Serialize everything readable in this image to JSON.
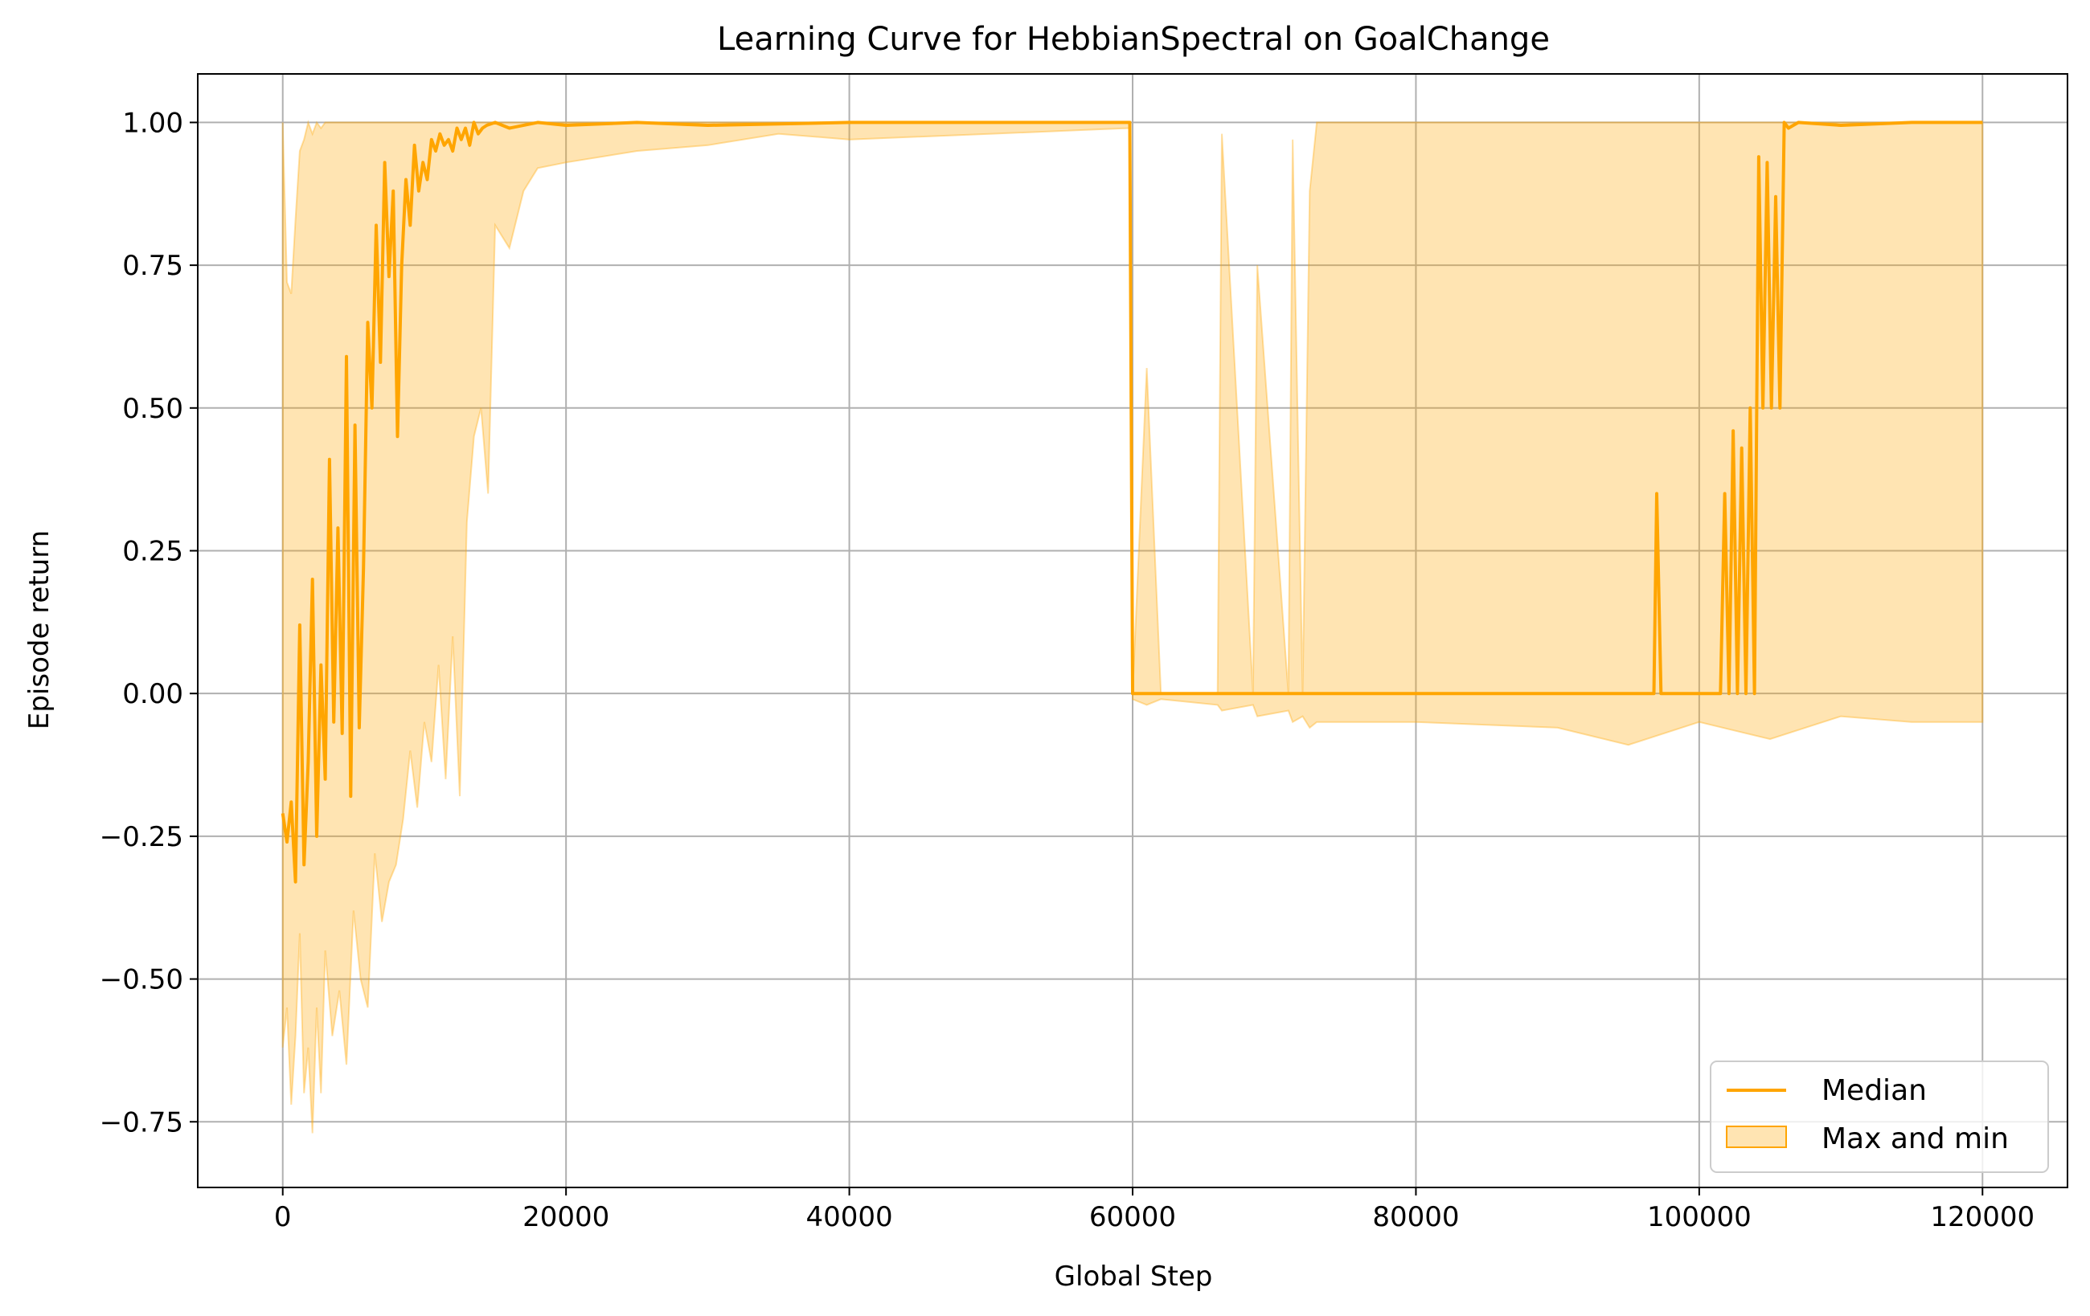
{
  "chart_data": {
    "type": "line",
    "title": "Learning Curve for HebbianSpectral on GoalChange",
    "xlabel": "Global Step",
    "ylabel": "Episode return",
    "xlim": [
      -6000,
      126000
    ],
    "ylim": [
      -0.865,
      1.085
    ],
    "xticks": [
      0,
      20000,
      40000,
      60000,
      80000,
      100000,
      120000
    ],
    "xtick_labels": [
      "0",
      "20000",
      "40000",
      "60000",
      "80000",
      "100000",
      "120000"
    ],
    "yticks": [
      -0.75,
      -0.5,
      -0.25,
      0.0,
      0.25,
      0.5,
      0.75,
      1.0
    ],
    "ytick_labels": [
      "−0.75",
      "−0.50",
      "−0.25",
      "0.00",
      "0.25",
      "0.50",
      "0.75",
      "1.00"
    ],
    "grid": true,
    "legend_position": "bottom-right",
    "colors": {
      "median": "#ffa500",
      "band": "#ffa500"
    },
    "series": [
      {
        "name": "Median",
        "kind": "line",
        "x": [
          0,
          300,
          600,
          900,
          1200,
          1500,
          1800,
          2100,
          2400,
          2700,
          3000,
          3300,
          3600,
          3900,
          4200,
          4500,
          4800,
          5100,
          5400,
          5700,
          6000,
          6300,
          6600,
          6900,
          7200,
          7500,
          7800,
          8100,
          8400,
          8700,
          9000,
          9300,
          9600,
          9900,
          10200,
          10500,
          10800,
          11100,
          11400,
          11700,
          12000,
          12300,
          12600,
          12900,
          13200,
          13500,
          13800,
          14100,
          14400,
          15000,
          16000,
          18000,
          20000,
          25000,
          30000,
          40000,
          50000,
          59800,
          60000,
          60300,
          65000,
          70000,
          75000,
          80000,
          85000,
          90000,
          96800,
          97000,
          97300,
          97600,
          97900,
          101500,
          101800,
          102100,
          102400,
          102700,
          103000,
          103300,
          103600,
          103900,
          104200,
          104500,
          104800,
          105100,
          105400,
          105700,
          106000,
          106300,
          107000,
          110000,
          115000,
          120000
        ],
        "y": [
          -0.21,
          -0.26,
          -0.19,
          -0.33,
          0.12,
          -0.3,
          -0.12,
          0.2,
          -0.25,
          0.05,
          -0.15,
          0.41,
          -0.05,
          0.29,
          -0.07,
          0.59,
          -0.18,
          0.47,
          -0.06,
          0.22,
          0.65,
          0.5,
          0.82,
          0.58,
          0.93,
          0.73,
          0.88,
          0.45,
          0.75,
          0.9,
          0.82,
          0.96,
          0.88,
          0.93,
          0.9,
          0.97,
          0.95,
          0.98,
          0.96,
          0.97,
          0.95,
          0.99,
          0.97,
          0.99,
          0.96,
          1.0,
          0.98,
          0.99,
          0.995,
          1.0,
          0.99,
          1.0,
          0.995,
          1.0,
          0.995,
          1.0,
          1.0,
          1.0,
          0.0,
          0.0,
          0.0,
          0.0,
          0.0,
          0.0,
          0.0,
          0.0,
          0.0,
          0.35,
          0.0,
          0.0,
          0.0,
          0.0,
          0.35,
          0.0,
          0.46,
          0.0,
          0.43,
          0.0,
          0.5,
          0.0,
          0.94,
          0.5,
          0.93,
          0.5,
          0.87,
          0.5,
          1.0,
          0.99,
          1.0,
          0.995,
          1.0,
          1.0
        ]
      },
      {
        "name": "Max and min",
        "kind": "band",
        "x": [
          0,
          300,
          600,
          900,
          1200,
          1500,
          1800,
          2100,
          2400,
          2700,
          3000,
          3500,
          4000,
          4500,
          5000,
          5500,
          6000,
          6500,
          7000,
          7500,
          8000,
          8500,
          9000,
          9500,
          10000,
          10500,
          11000,
          11500,
          12000,
          12500,
          13000,
          13500,
          14000,
          14500,
          15000,
          16000,
          17000,
          18000,
          20000,
          25000,
          30000,
          35000,
          40000,
          50000,
          59800,
          60000,
          61000,
          62000,
          66000,
          66300,
          68500,
          68800,
          71000,
          71300,
          72000,
          72500,
          73000,
          73200,
          80000,
          90000,
          95000,
          100000,
          105000,
          110000,
          115000,
          120000
        ],
        "upper": [
          1.0,
          0.72,
          0.7,
          0.83,
          0.95,
          0.97,
          1.0,
          0.98,
          1.0,
          0.99,
          1.0,
          1.0,
          1.0,
          1.0,
          1.0,
          1.0,
          1.0,
          1.0,
          1.0,
          1.0,
          1.0,
          1.0,
          1.0,
          1.0,
          1.0,
          1.0,
          1.0,
          1.0,
          1.0,
          1.0,
          1.0,
          1.0,
          1.0,
          1.0,
          1.0,
          1.0,
          1.0,
          1.0,
          1.0,
          1.0,
          1.0,
          1.0,
          1.0,
          1.0,
          1.0,
          0.0,
          0.57,
          0.0,
          0.0,
          0.98,
          0.0,
          0.75,
          0.0,
          0.97,
          0.0,
          0.88,
          1.0,
          1.0,
          1.0,
          1.0,
          1.0,
          1.0,
          1.0,
          1.0,
          1.0,
          1.0
        ],
        "lower": [
          -0.62,
          -0.55,
          -0.72,
          -0.6,
          -0.42,
          -0.7,
          -0.62,
          -0.77,
          -0.55,
          -0.7,
          -0.45,
          -0.6,
          -0.52,
          -0.65,
          -0.38,
          -0.5,
          -0.55,
          -0.28,
          -0.4,
          -0.33,
          -0.3,
          -0.22,
          -0.1,
          -0.2,
          -0.05,
          -0.12,
          0.05,
          -0.15,
          0.1,
          -0.18,
          0.3,
          0.45,
          0.5,
          0.35,
          0.82,
          0.78,
          0.88,
          0.92,
          0.93,
          0.95,
          0.96,
          0.98,
          0.97,
          0.98,
          0.99,
          -0.01,
          -0.02,
          -0.01,
          -0.02,
          -0.03,
          -0.02,
          -0.04,
          -0.03,
          -0.05,
          -0.04,
          -0.06,
          -0.05,
          -0.05,
          -0.05,
          -0.06,
          -0.09,
          -0.05,
          -0.08,
          -0.04,
          -0.05,
          -0.05
        ]
      }
    ],
    "legend": [
      {
        "label": "Median",
        "kind": "line"
      },
      {
        "label": "Max and min",
        "kind": "band"
      }
    ]
  }
}
